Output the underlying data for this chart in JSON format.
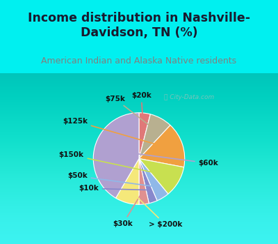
{
  "title": "Income distribution in Nashville-\nDavidson, TN (%)",
  "subtitle": "American Indian and Alaska Native residents",
  "labels": [
    "$20k",
    "$75k",
    "$125k",
    "$150k",
    "$50k",
    "$10k",
    "$30k",
    "> $200k",
    "$60k"
  ],
  "values": [
    4.0,
    8.0,
    16.0,
    11.0,
    4.5,
    3.0,
    3.5,
    8.5,
    41.5
  ],
  "colors": [
    "#e07878",
    "#b8b090",
    "#f0a040",
    "#c8e050",
    "#90b8e8",
    "#8888cc",
    "#e09090",
    "#f5e87a",
    "#b0a0d0"
  ],
  "seg_colors_order": [
    "$20k->pink",
    "$75k->tan",
    "$125k->orange",
    "$150k->limegreen",
    "$50k->lightblue",
    "$10k->medblue",
    "$30k->salmon",
    ">$200k->lightsage",
    "$60k->purple"
  ],
  "background_color": "#00f0f0",
  "chart_bg_top": "#e8f8f4",
  "chart_bg_bottom": "#d8eed8",
  "title_color": "#1a1a2e",
  "subtitle_color": "#808080",
  "watermark": "City-Data.com",
  "startangle": 90,
  "label_fontsize": 7.5,
  "title_fontsize": 12.5,
  "subtitle_fontsize": 9
}
